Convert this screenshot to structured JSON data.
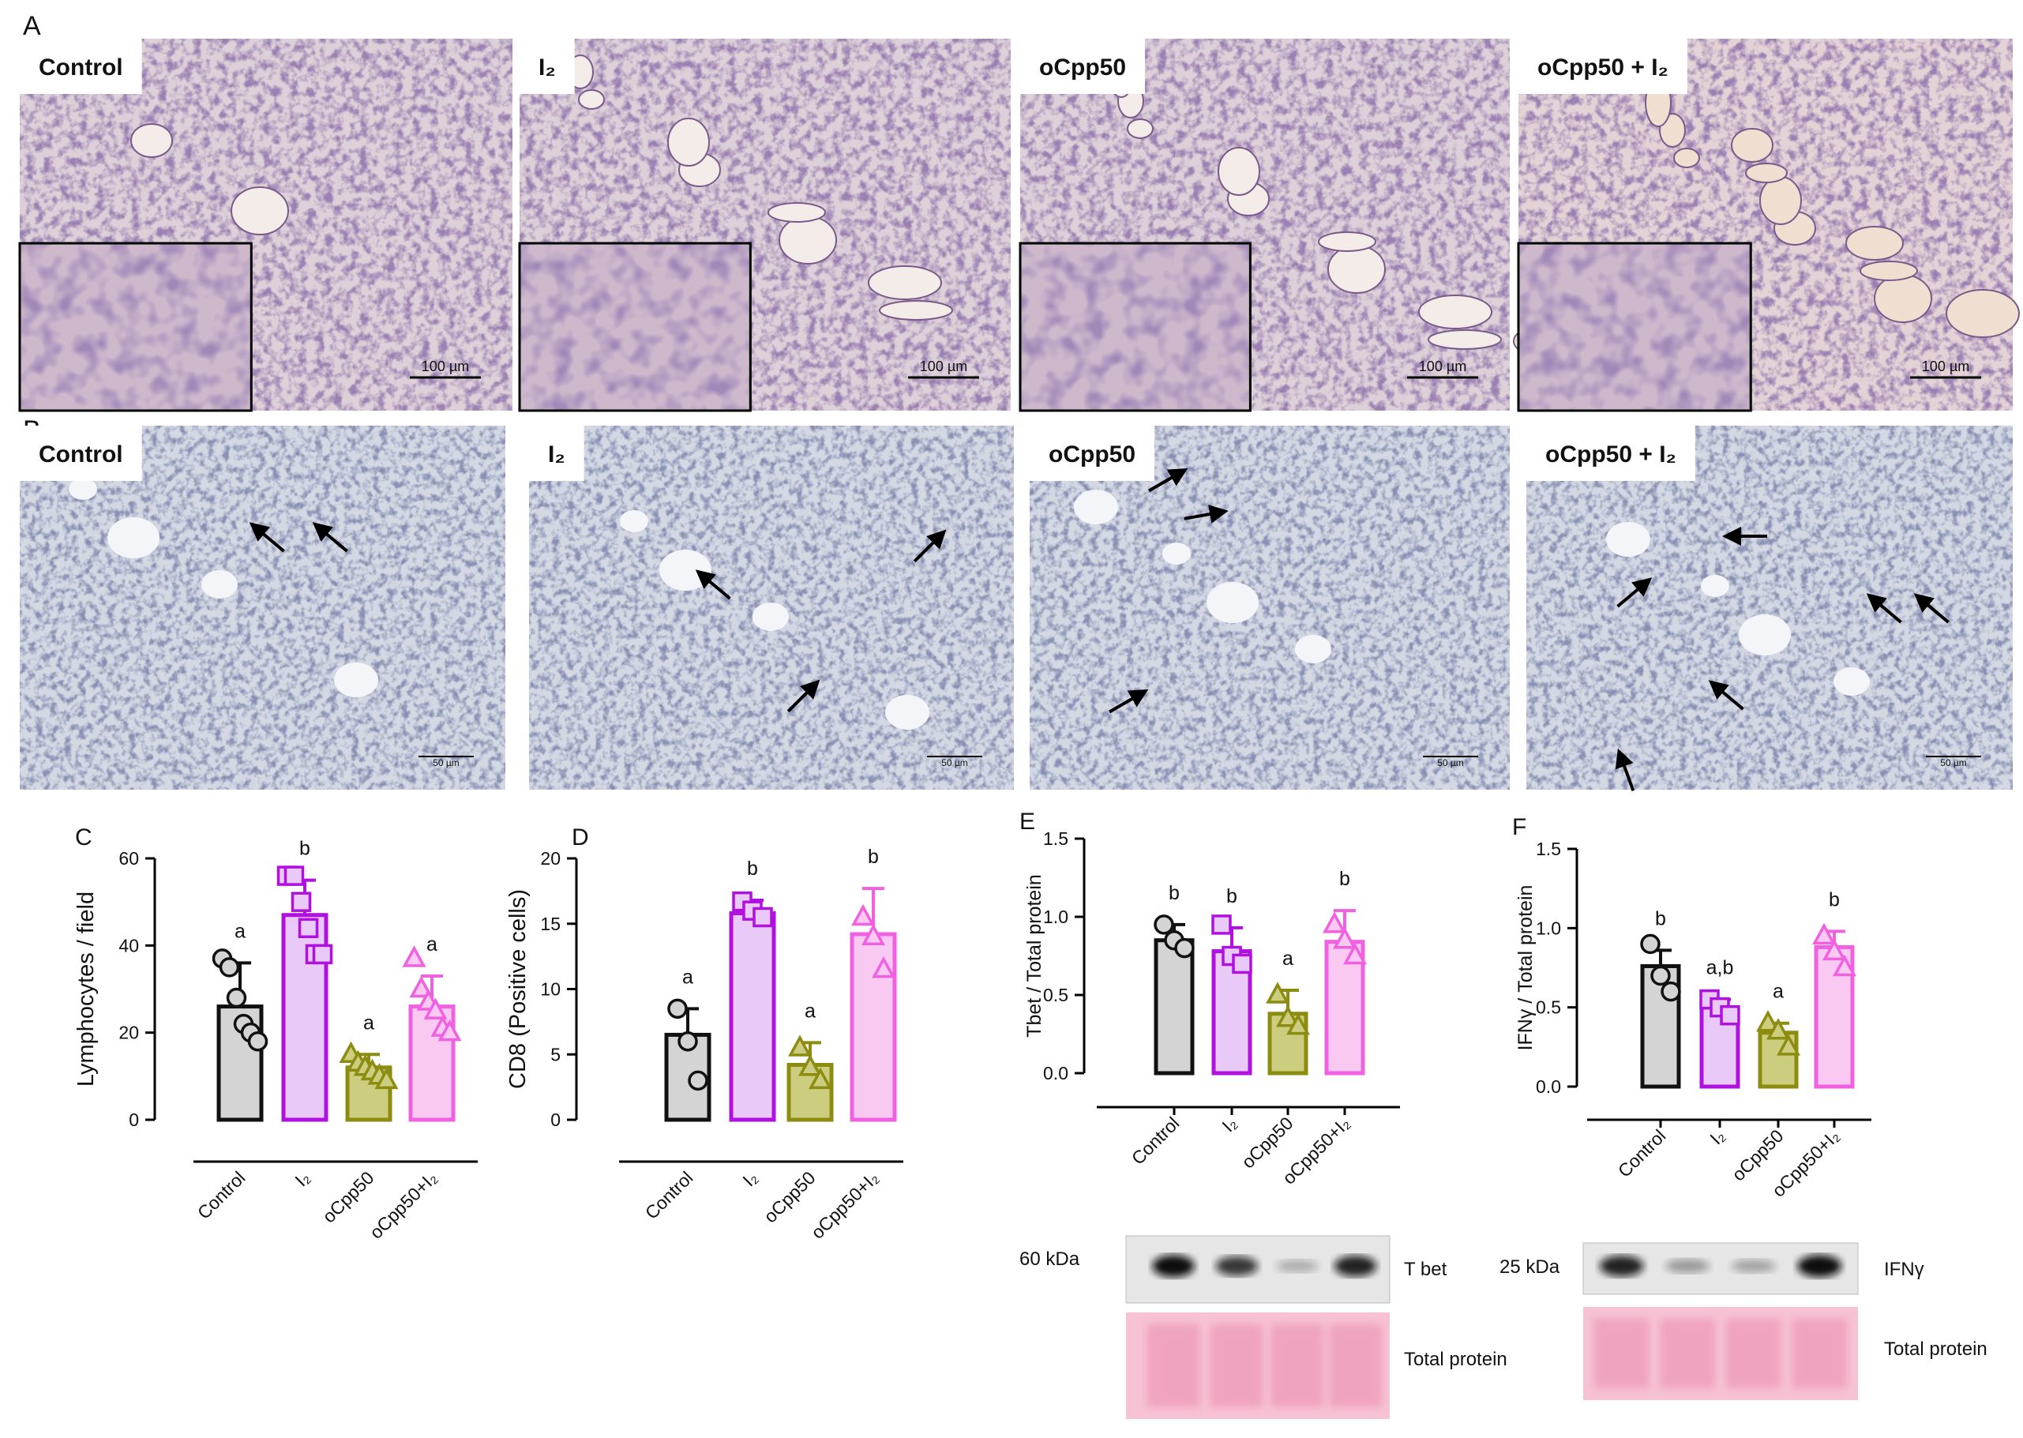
{
  "panel_labels": [
    "A",
    "B",
    "C",
    "D",
    "E",
    "F"
  ],
  "panel_a": {
    "labels": [
      "Control",
      "I₂",
      "oCpp50",
      "oCpp50 + I₂"
    ],
    "scale_bars": [
      "100 µm",
      "100 µm",
      "100 µm",
      "100 µm"
    ]
  },
  "panel_b": {
    "labels": [
      "Control",
      "I₂",
      "oCpp50",
      "oCpp50 + I₂"
    ],
    "scale_bars": [
      "50 µm",
      "50 µm",
      "50 µm",
      "50 µm"
    ]
  },
  "chart_data": [
    {
      "type": "bar",
      "ylabel": "Lymphocytes / field",
      "categories": [
        "Control",
        "I₂",
        "oCpp50",
        "oCpp50+I₂"
      ],
      "values": [
        26,
        47,
        12,
        26
      ],
      "errors": [
        10,
        8,
        3,
        7
      ],
      "points": [
        [
          37,
          35,
          28,
          22,
          20,
          18
        ],
        [
          56,
          56,
          50,
          44,
          38,
          38
        ],
        [
          15,
          13,
          12,
          11,
          10,
          9
        ],
        [
          37,
          30,
          27,
          25,
          21,
          20
        ]
      ],
      "annotations": [
        "a",
        "b",
        "a",
        "a"
      ],
      "colors": [
        "#111111",
        "#b010e0",
        "#8c8c10",
        "#f060e0"
      ],
      "fill_colors": [
        "#d4d4d4",
        "#e9c9f8",
        "#cdcd80",
        "#f9c9f2"
      ],
      "ylim": [
        0,
        60
      ],
      "yticks": [
        0,
        20,
        40,
        60
      ]
    },
    {
      "type": "bar",
      "ylabel": "CD8 (Positive cells)",
      "categories": [
        "Control",
        "I₂",
        "oCpp50",
        "oCpp50+I₂"
      ],
      "values": [
        6.5,
        15.8,
        4.2,
        14.2
      ],
      "errors": [
        2,
        1,
        1.7,
        3.5
      ],
      "points": [
        [
          8.5,
          6,
          3
        ],
        [
          16.7,
          16,
          15.5
        ],
        [
          5.5,
          4,
          3
        ],
        [
          15.5,
          14,
          11.5
        ]
      ],
      "annotations": [
        "a",
        "b",
        "a",
        "b"
      ],
      "colors": [
        "#111111",
        "#b010e0",
        "#8c8c10",
        "#f060e0"
      ],
      "fill_colors": [
        "#d4d4d4",
        "#e9c9f8",
        "#cdcd80",
        "#f9c9f2"
      ],
      "ylim": [
        0,
        20
      ],
      "yticks": [
        0,
        5,
        10,
        15,
        20
      ]
    },
    {
      "type": "bar",
      "ylabel": "Tbet / Total protein",
      "categories": [
        "Control",
        "I₂",
        "oCpp50",
        "oCpp50+I₂"
      ],
      "values": [
        0.85,
        0.78,
        0.38,
        0.84
      ],
      "errors": [
        0.1,
        0.15,
        0.15,
        0.2
      ],
      "points": [
        [
          0.95,
          0.85,
          0.8
        ],
        [
          0.95,
          0.75,
          0.7
        ],
        [
          0.5,
          0.35,
          0.3
        ],
        [
          0.95,
          0.85,
          0.75
        ]
      ],
      "annotations": [
        "b",
        "b",
        "a",
        "b"
      ],
      "colors": [
        "#111111",
        "#b010e0",
        "#8c8c10",
        "#f060e0"
      ],
      "fill_colors": [
        "#d4d4d4",
        "#e9c9f8",
        "#cdcd80",
        "#f9c9f2"
      ],
      "ylim": [
        0,
        1.5
      ],
      "yticks": [
        {
          "value": 0,
          "label": "0.0"
        },
        {
          "value": 0.5,
          "label": "0.5"
        },
        {
          "value": 1,
          "label": "1.0"
        },
        {
          "value": 1.5,
          "label": "1.5"
        }
      ]
    },
    {
      "type": "bar",
      "ylabel": "IFNγ / Total protein",
      "categories": [
        "Control",
        "I₂",
        "oCpp50",
        "oCpp50+I₂"
      ],
      "values": [
        0.76,
        0.5,
        0.34,
        0.88
      ],
      "errors": [
        0.1,
        0.05,
        0.06,
        0.1
      ],
      "points": [
        [
          0.9,
          0.7,
          0.6
        ],
        [
          0.55,
          0.5,
          0.45
        ],
        [
          0.4,
          0.35,
          0.25
        ],
        [
          0.95,
          0.85,
          0.75
        ]
      ],
      "annotations": [
        "b",
        "a,b",
        "a",
        "b"
      ],
      "colors": [
        "#111111",
        "#b010e0",
        "#8c8c10",
        "#f060e0"
      ],
      "fill_colors": [
        "#d4d4d4",
        "#e9c9f8",
        "#cdcd80",
        "#f9c9f2"
      ],
      "ylim": [
        0,
        1.5
      ],
      "yticks": [
        {
          "value": 0,
          "label": "0.0"
        },
        {
          "value": 0.5,
          "label": "0.5"
        },
        {
          "value": 1,
          "label": "1.0"
        },
        {
          "value": 1.5,
          "label": "1.5"
        }
      ]
    }
  ],
  "blots": [
    {
      "size_label": "60 kDa",
      "target_label": "T bet",
      "loading_label": "Total protein"
    },
    {
      "size_label": "25 kDa",
      "target_label": "IFNγ",
      "loading_label": "Total protein"
    }
  ]
}
